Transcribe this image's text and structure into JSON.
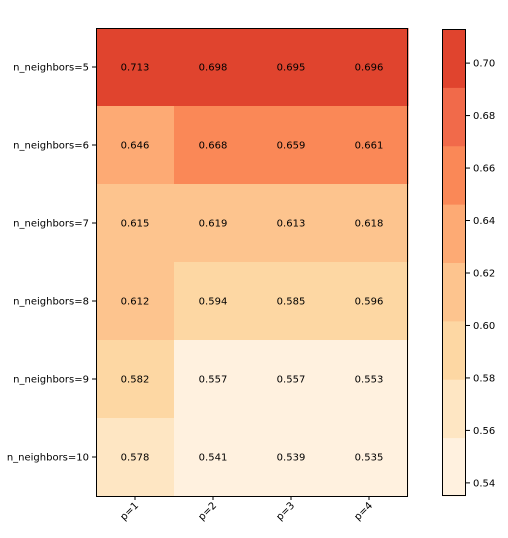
{
  "chart_data": {
    "type": "heatmap",
    "x_labels": [
      "p=1",
      "p=2",
      "p=3",
      "p=4"
    ],
    "y_labels": [
      "n_neighbors=5",
      "n_neighbors=6",
      "n_neighbors=7",
      "n_neighbors=8",
      "n_neighbors=9",
      "n_neighbors=10"
    ],
    "values": [
      [
        0.713,
        0.698,
        0.695,
        0.696
      ],
      [
        0.646,
        0.668,
        0.659,
        0.661
      ],
      [
        0.615,
        0.619,
        0.613,
        0.618
      ],
      [
        0.612,
        0.594,
        0.585,
        0.596
      ],
      [
        0.582,
        0.557,
        0.557,
        0.553
      ],
      [
        0.578,
        0.541,
        0.539,
        0.535
      ]
    ],
    "colorbar": {
      "min": 0.535,
      "max": 0.713,
      "ticks": [
        "0.54",
        "0.56",
        "0.58",
        "0.60",
        "0.62",
        "0.64",
        "0.66",
        "0.68",
        "0.70"
      ],
      "tick_values": [
        0.54,
        0.56,
        0.58,
        0.6,
        0.62,
        0.64,
        0.66,
        0.68,
        0.7
      ],
      "colormap": [
        "#fff7ec",
        "#fee8c8",
        "#fdd49e",
        "#fdbb84",
        "#fc8d59",
        "#ef6548",
        "#d7301f"
      ],
      "color_steps": 8
    },
    "xlabel": "",
    "ylabel": "",
    "title": ""
  }
}
